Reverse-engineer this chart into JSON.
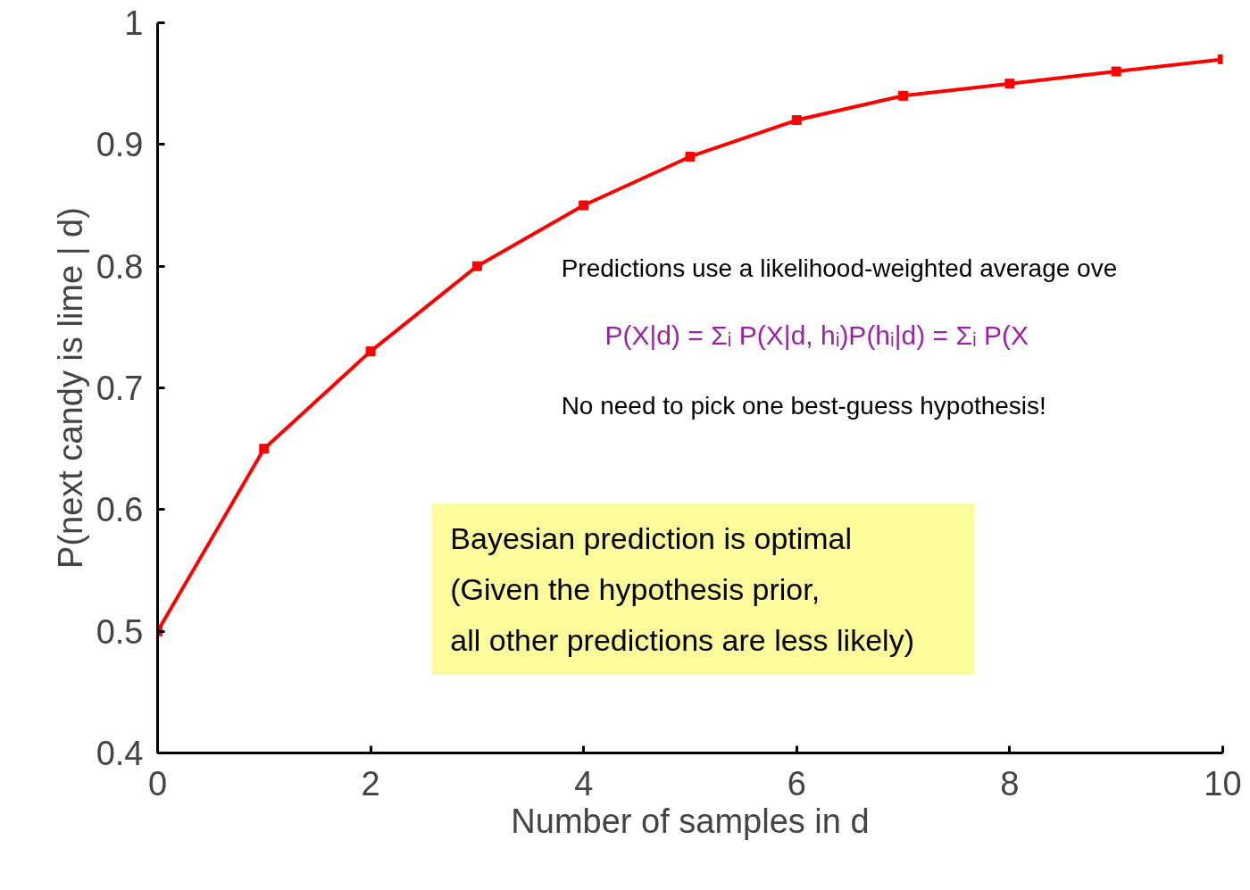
{
  "chart_data": {
    "type": "line",
    "xlabel": "Number of samples in d",
    "ylabel": "P(next candy is lime | d)",
    "x": [
      0,
      1,
      2,
      3,
      4,
      5,
      6,
      7,
      8,
      9,
      10
    ],
    "series": [
      {
        "color": "#ff0000",
        "values": [
          0.5,
          0.65,
          0.73,
          0.8,
          0.85,
          0.89,
          0.92,
          0.94,
          0.95,
          0.96,
          0.97
        ]
      }
    ],
    "xlim": [
      0,
      10
    ],
    "ylim": [
      0.4,
      1
    ],
    "xticks": [
      0,
      2,
      4,
      6,
      8,
      10
    ],
    "yticks": [
      0.4,
      0.5,
      0.6,
      0.7,
      0.8,
      0.9,
      1
    ],
    "marker": "square",
    "line_style": "solid",
    "grid": false,
    "annotations": [
      "Predictions use a likelihood-weighted average ove",
      "P(X|d) = Σᵢ P(X|d, hᵢ)P(hᵢ|d) = Σᵢ P(X",
      "No need to pick one best-guess hypothesis!",
      "Bayesian prediction is optimal\n  (Given the hypothesis prior,\n     all other predictions are less likely)"
    ]
  }
}
